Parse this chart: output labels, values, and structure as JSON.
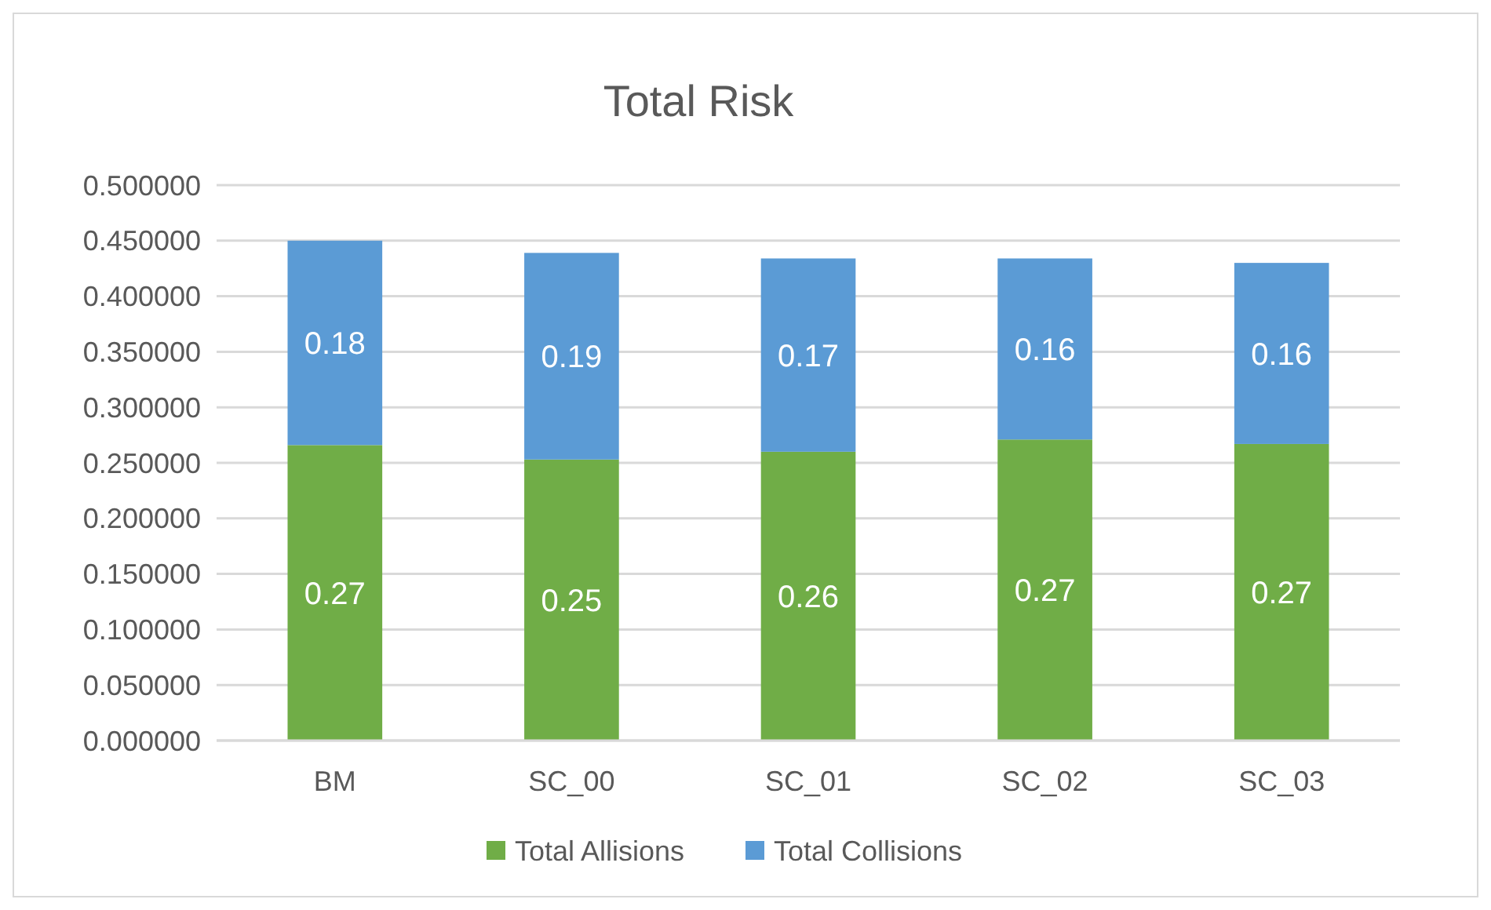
{
  "chart_data": {
    "type": "bar",
    "title": "Total Risk",
    "categories": [
      "BM",
      "SC_00",
      "SC_01",
      "SC_02",
      "SC_03"
    ],
    "stacked": true,
    "series": [
      {
        "name": "Total Allisions",
        "color": "#70ad47",
        "values": [
          0.266,
          0.253,
          0.26,
          0.271,
          0.267
        ],
        "value_labels": [
          "0.27",
          "0.25",
          "0.26",
          "0.27",
          "0.27"
        ]
      },
      {
        "name": "Total Collisions",
        "color": "#5b9bd5",
        "values": [
          0.184,
          0.186,
          0.174,
          0.163,
          0.163
        ],
        "value_labels": [
          "0.18",
          "0.19",
          "0.17",
          "0.16",
          "0.16"
        ]
      }
    ],
    "ylim": [
      0,
      0.5
    ],
    "yticks": [
      {
        "value": 0,
        "label": "0.000000"
      },
      {
        "value": 0.05,
        "label": "0.050000"
      },
      {
        "value": 0.1,
        "label": "0.100000"
      },
      {
        "value": 0.15,
        "label": "0.150000"
      },
      {
        "value": 0.2,
        "label": "0.200000"
      },
      {
        "value": 0.25,
        "label": "0.250000"
      },
      {
        "value": 0.3,
        "label": "0.300000"
      },
      {
        "value": 0.35,
        "label": "0.350000"
      },
      {
        "value": 0.4,
        "label": "0.400000"
      },
      {
        "value": 0.45,
        "label": "0.450000"
      },
      {
        "value": 0.5,
        "label": "0.500000"
      }
    ],
    "grid": "y",
    "legend": "bottom"
  }
}
